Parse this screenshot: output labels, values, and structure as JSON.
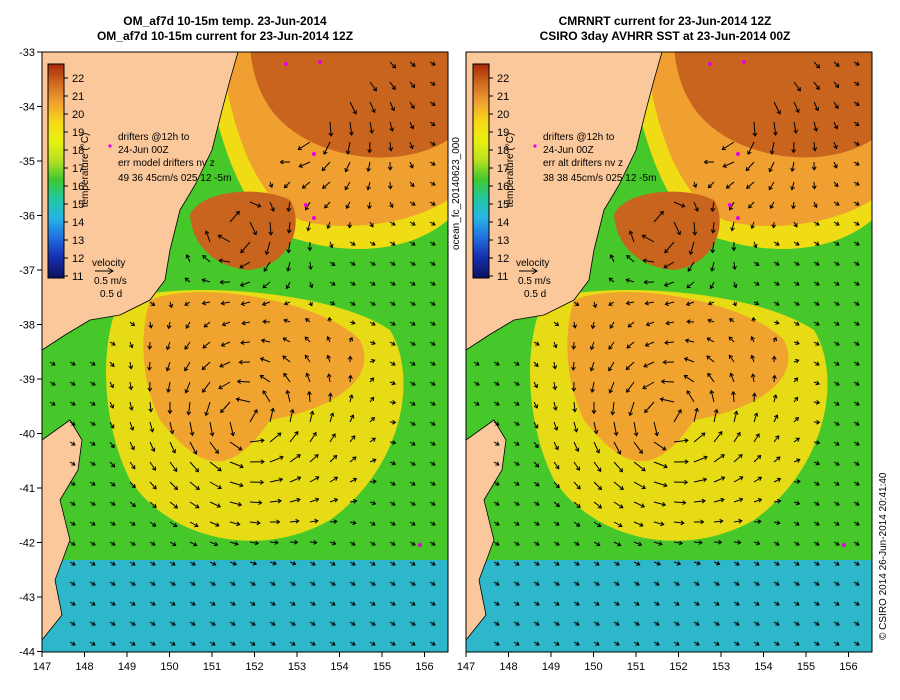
{
  "left_panel": {
    "title_line1": "OM_af7d 10-15m temp. 23-Jun-2014",
    "title_line2": "OM_af7d 10-15m current for 23-Jun-2014 12Z",
    "legend_lines": [
      "drifters @12h to",
      "24-Jun 00Z",
      "err model drifters nv z",
      "49   36    45cm/s 025  12 -5m"
    ],
    "velocity_label": "velocity",
    "velocity_scale": "0.5 m/s",
    "velocity_time": "0.5 d"
  },
  "right_panel": {
    "title_line1": "CMRNRT current for 23-Jun-2014 12Z",
    "title_line2": "CSIRO 3day AVHRR SST at 23-Jun-2014 00Z",
    "legend_lines": [
      "drifters @12h to",
      "24-Jun 00Z",
      "err alt drifters nv z",
      "38 38 45cm/s 025  12 -5m"
    ],
    "velocity_label": "velocity",
    "velocity_scale": "0.5 m/s",
    "velocity_time": "0.5 d"
  },
  "center_label": "ocean_fc_20140623_000",
  "side_label": "© CSIRO 2014    26-Jun-2014 20:41:40",
  "colorbar": {
    "title": "temperature (°C)",
    "ticks": [
      "22",
      "21",
      "20",
      "19",
      "18",
      "17",
      "16",
      "15",
      "14",
      "13",
      "12",
      "11"
    ]
  },
  "axes": {
    "x_ticks": [
      "147",
      "148",
      "149",
      "150",
      "151",
      "152",
      "153",
      "154",
      "155",
      "156"
    ],
    "y_ticks": [
      "-33",
      "-34",
      "-35",
      "-36",
      "-37",
      "-38",
      "-39",
      "-40",
      "-41",
      "-42",
      "-43",
      "-44"
    ]
  },
  "colors": {
    "land": "#fbc89c",
    "warm": "#c8641e",
    "orange": "#f0a030",
    "yellow": "#f0dc14",
    "green": "#3cc828",
    "cyan": "#2ab4e6",
    "arrow": "#000000",
    "drifter": "#e600e6"
  }
}
